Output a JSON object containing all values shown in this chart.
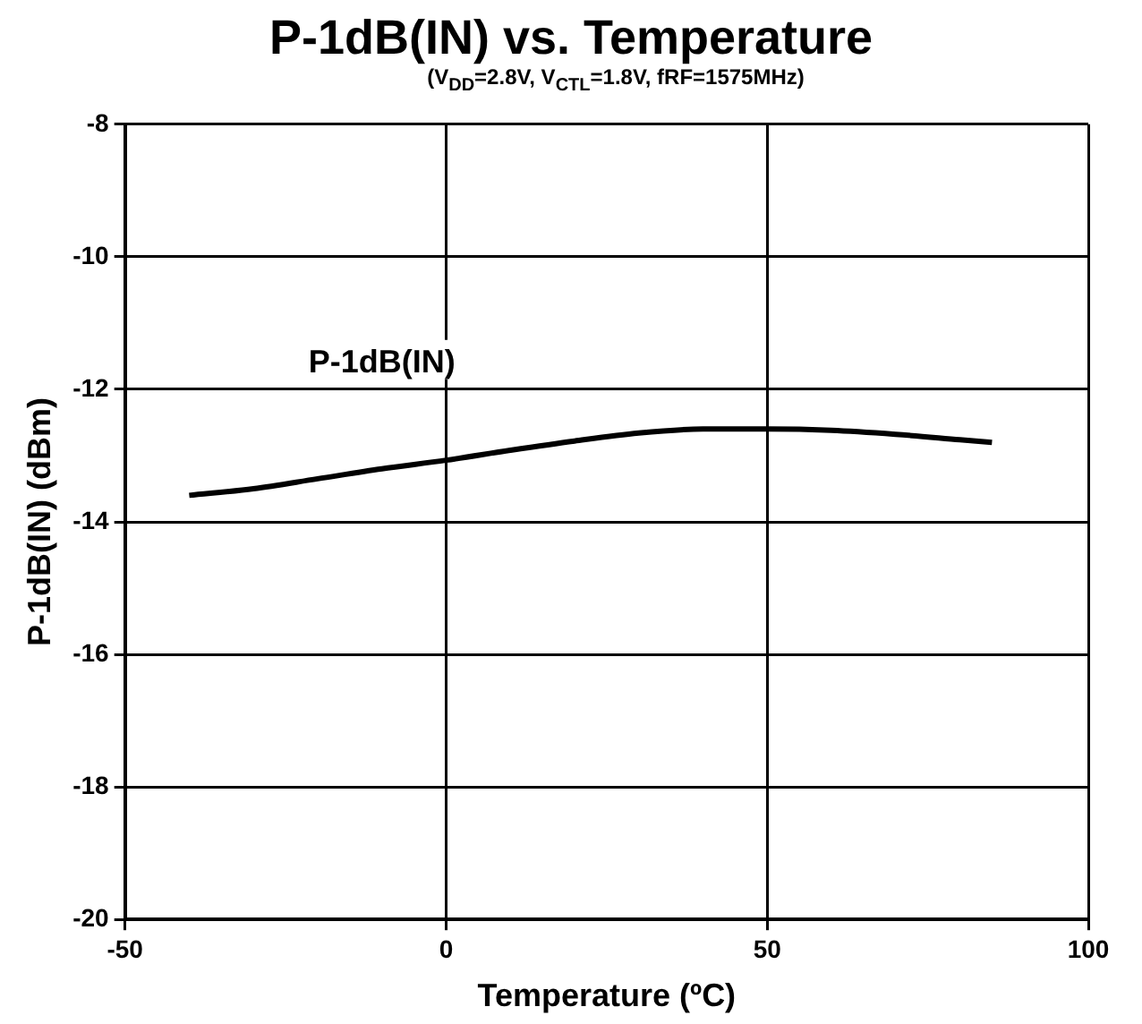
{
  "chart_data": {
    "type": "line",
    "title": "P-1dB(IN) vs. Temperature",
    "subtitle": "(V$_{DD}$=2.8V, V$_{CTL}$=1.8V, fRF=1575MHz)",
    "xlabel": "Temperature (ºC)",
    "ylabel": "P-1dB(IN) (dBm)",
    "x": [
      -40,
      -30,
      -20,
      -10,
      0,
      10,
      20,
      30,
      40,
      50,
      60,
      70,
      80,
      85
    ],
    "series": [
      {
        "name": "P-1dB(IN)",
        "color": "#000000",
        "values": [
          -13.6,
          -13.5,
          -13.35,
          -13.2,
          -13.07,
          -12.92,
          -12.78,
          -12.66,
          -12.6,
          -12.6,
          -12.62,
          -12.68,
          -12.76,
          -12.8
        ]
      }
    ],
    "xlim": [
      -50,
      100
    ],
    "xticks": [
      -50,
      0,
      50,
      100
    ],
    "ylim": [
      -20,
      -8
    ],
    "yticks": [
      -20,
      -18,
      -16,
      -14,
      -12,
      -10,
      -8
    ],
    "grid": true,
    "legend": false,
    "marker": "none",
    "line_style": "solid"
  }
}
